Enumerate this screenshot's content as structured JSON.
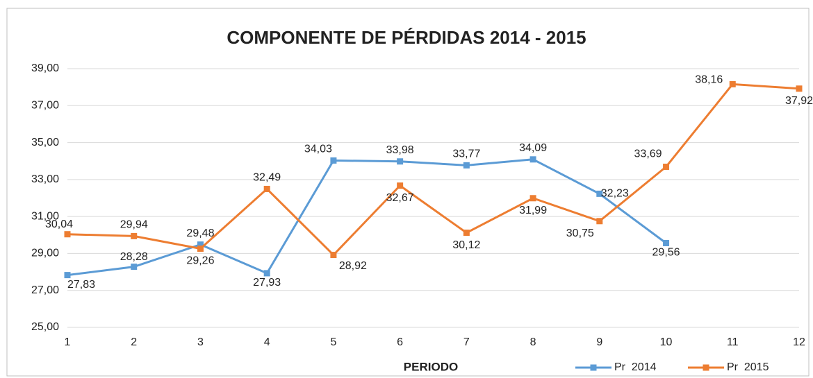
{
  "chart_data": {
    "type": "line",
    "title": "COMPONENTE  DE  PÉRDIDAS   2014 - 2015",
    "x_label": "PERIODO",
    "x": [
      1,
      2,
      3,
      4,
      5,
      6,
      7,
      8,
      9,
      10,
      11,
      12
    ],
    "xlim": [
      1,
      12
    ],
    "ylim": [
      25,
      39
    ],
    "yticks": [
      {
        "value": 25,
        "label": "25,00"
      },
      {
        "value": 27,
        "label": "27,00"
      },
      {
        "value": 29,
        "label": "29,00"
      },
      {
        "value": 31,
        "label": "31,00"
      },
      {
        "value": 33,
        "label": "33,00"
      },
      {
        "value": 35,
        "label": "35,00"
      },
      {
        "value": 37,
        "label": "37,00"
      },
      {
        "value": 39,
        "label": "39,00"
      }
    ],
    "grid": true,
    "legend": "bottom-right",
    "series": [
      {
        "name": "Pr  2014",
        "color": "#5b9bd5",
        "values": [
          27.83,
          28.28,
          29.48,
          27.93,
          34.03,
          33.98,
          33.77,
          34.09,
          32.23,
          29.56,
          null,
          null
        ],
        "value_labels": [
          "27,83",
          "28,28",
          "29,48",
          "27,93",
          "34,03",
          "33,98",
          "33,77",
          "34,09",
          "32,23",
          "29,56",
          null,
          null
        ]
      },
      {
        "name": "Pr  2015",
        "color": "#ed7d31",
        "values": [
          30.04,
          29.94,
          29.26,
          32.49,
          28.92,
          32.67,
          30.12,
          31.99,
          30.75,
          33.69,
          38.16,
          37.92
        ],
        "value_labels": [
          "30,04",
          "29,94",
          "29,26",
          "32,49",
          "28,92",
          "32,67",
          "30,12",
          "31,99",
          "30,75",
          "33,69",
          "38,16",
          "37,92"
        ]
      }
    ]
  }
}
